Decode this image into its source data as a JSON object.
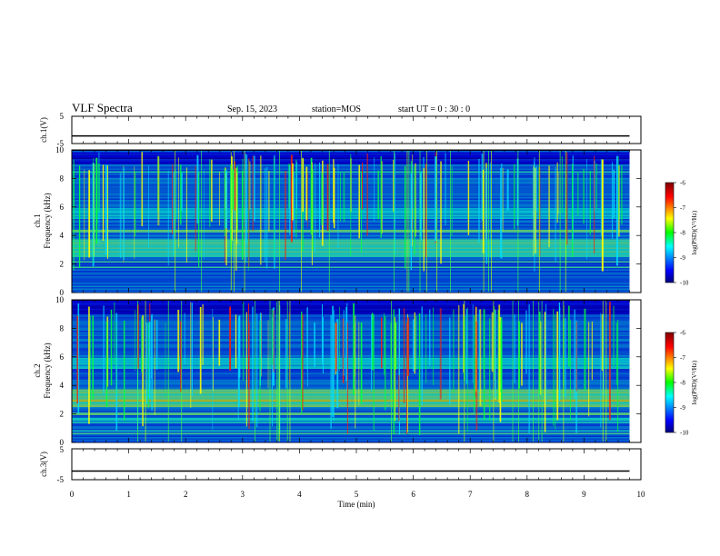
{
  "header": {
    "title": "VLF Spectra",
    "date": "Sep. 15, 2023",
    "station": "station=MOS",
    "start": "start  UT =   0 : 30 : 0"
  },
  "chart_data": [
    {
      "type": "line",
      "panel": "ch1-voltage",
      "ylabel": "ch.1(V)",
      "ylim": [
        -5,
        5
      ],
      "y_ticks": [
        "5",
        "-5"
      ],
      "series": [
        {
          "x": [
            0,
            9.8
          ],
          "y": [
            -2.2,
            -2.2
          ]
        }
      ]
    },
    {
      "type": "heatmap",
      "panel": "ch1-spectrogram",
      "ylabel": [
        "ch.1",
        "Frequency (kHz)"
      ],
      "ylim": [
        0,
        10
      ],
      "y_ticks": [
        "0",
        "2",
        "4",
        "6",
        "8",
        "10"
      ],
      "colorbar": {
        "label": "log(PSD)(V²/Hz)",
        "range": [
          -10,
          -6
        ],
        "ticks": [
          "-6",
          "-7",
          "-8",
          "-9",
          "-10"
        ]
      }
    },
    {
      "type": "heatmap",
      "panel": "ch2-spectrogram",
      "ylabel": [
        "ch.2",
        "Frequency (kHz)"
      ],
      "ylim": [
        0,
        10
      ],
      "y_ticks": [
        "0",
        "2",
        "4",
        "6",
        "8",
        "10"
      ],
      "colorbar": {
        "label": "log(PSD)(V²/Hz)",
        "range": [
          -10,
          -6
        ],
        "ticks": [
          "-6",
          "-7",
          "-8",
          "-9",
          "-10"
        ]
      }
    },
    {
      "type": "line",
      "panel": "ch3-voltage",
      "ylabel": "ch.3(V)",
      "ylim": [
        -5,
        5
      ],
      "y_ticks": [
        "5",
        "-5"
      ],
      "series": [
        {
          "x": [
            0,
            9.8
          ],
          "y": [
            -2.2,
            -2.2
          ]
        }
      ]
    }
  ],
  "xaxis": {
    "label": "Time  (min)",
    "range": [
      0,
      10
    ],
    "ticks": [
      "0",
      "1",
      "2",
      "3",
      "4",
      "5",
      "6",
      "7",
      "8",
      "9",
      "10"
    ]
  }
}
